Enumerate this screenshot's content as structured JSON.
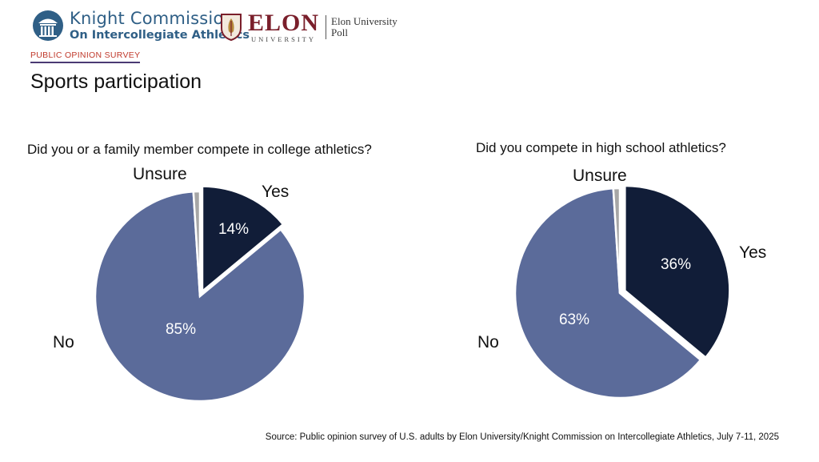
{
  "header": {
    "knight_line1": "Knight Commission",
    "knight_line2": "On Intercollegiate Athletics",
    "elon_name": "ELON",
    "elon_sub": "UNIVERSITY",
    "elon_poll_line1": "Elon University",
    "elon_poll_line2": "Poll"
  },
  "survey_label": "PUBLIC OPINION SURVEY",
  "title": "Sports participation",
  "colors": {
    "yes": "#111d38",
    "no": "#5b6b9a",
    "unsure": "#a6a6a6",
    "survey_label": "#c0392b",
    "knight_blue": "#2f5f86",
    "elon_red": "#7a1f2b"
  },
  "chart_data": [
    {
      "type": "pie",
      "title": "Did you or a family member compete in college athletics?",
      "slices": [
        {
          "label": "Yes",
          "value": 14,
          "data_label": "14%",
          "color": "#111d38",
          "exploded": true
        },
        {
          "label": "No",
          "value": 85,
          "data_label": "85%",
          "color": "#5b6b9a",
          "exploded": false
        },
        {
          "label": "Unsure",
          "value": 1,
          "data_label": "",
          "color": "#a6a6a6",
          "exploded": false
        }
      ]
    },
    {
      "type": "pie",
      "title": "Did you compete in high school athletics?",
      "slices": [
        {
          "label": "Yes",
          "value": 36,
          "data_label": "36%",
          "color": "#111d38",
          "exploded": true
        },
        {
          "label": "No",
          "value": 63,
          "data_label": "63%",
          "color": "#5b6b9a",
          "exploded": false
        },
        {
          "label": "Unsure",
          "value": 1,
          "data_label": "",
          "color": "#a6a6a6",
          "exploded": false
        }
      ]
    }
  ],
  "source": "Source: Public opinion survey of U.S. adults by Elon University/Knight Commission on Intercollegiate Athletics, July 7-11, 2025"
}
